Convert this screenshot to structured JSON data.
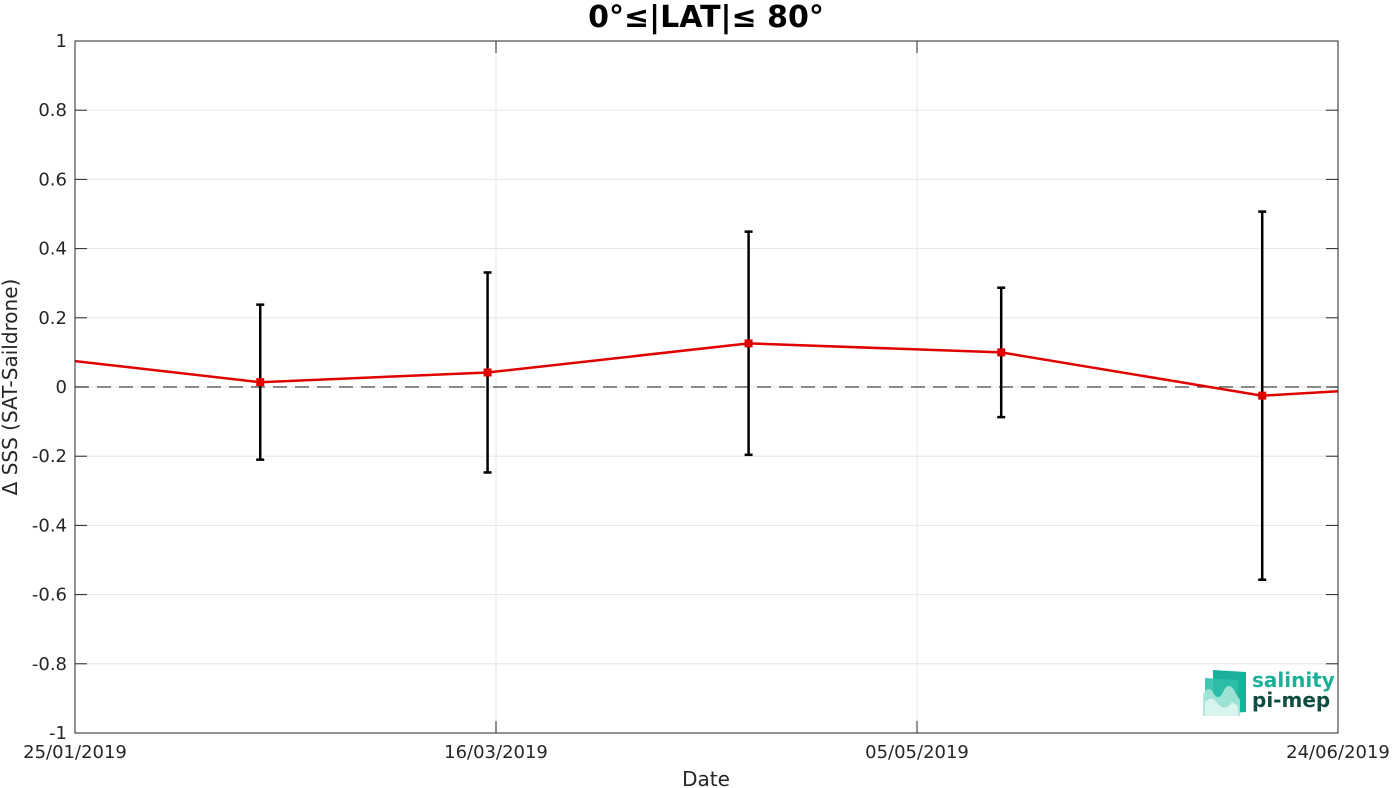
{
  "chart_data": {
    "type": "line",
    "title": "0°≤|LAT|≤ 80°",
    "xlabel": "Date",
    "ylabel": "Δ SSS (SAT-Saildrone)",
    "x_ticks": [
      "25/01/2019",
      "16/03/2019",
      "05/05/2019",
      "24/06/2019"
    ],
    "y_ticks": [
      "1",
      "0.8",
      "0.6",
      "0.4",
      "0.2",
      "0",
      "-0.2",
      "-0.4",
      "-0.6",
      "-0.8",
      "-1"
    ],
    "xlim": [
      "2019-01-25",
      "2019-06-24"
    ],
    "ylim": [
      -1,
      1
    ],
    "grid": true,
    "reference_line": {
      "y": 0,
      "style": "dashed",
      "color": "#444444"
    },
    "series": [
      {
        "color": "#e00000",
        "marker": "square",
        "points": [
          {
            "x": "2019-01-25",
            "y": 0.075
          },
          {
            "x": "2019-02-16",
            "y": 0.014,
            "err_low": -0.21,
            "err_high": 0.238
          },
          {
            "x": "2019-03-15",
            "y": 0.042,
            "err_low": -0.247,
            "err_high": 0.331
          },
          {
            "x": "2019-04-15",
            "y": 0.126,
            "err_low": -0.196,
            "err_high": 0.449
          },
          {
            "x": "2019-05-15",
            "y": 0.1,
            "err_low": -0.087,
            "err_high": 0.287
          },
          {
            "x": "2019-06-15",
            "y": -0.025,
            "err_low": -0.557,
            "err_high": 0.507
          },
          {
            "x": "2019-06-24",
            "y": -0.012
          }
        ]
      }
    ]
  },
  "logo": {
    "line1": "salinity",
    "line2": "pi-mep",
    "color1": "#1ab09a",
    "color2": "#0e4d40"
  }
}
